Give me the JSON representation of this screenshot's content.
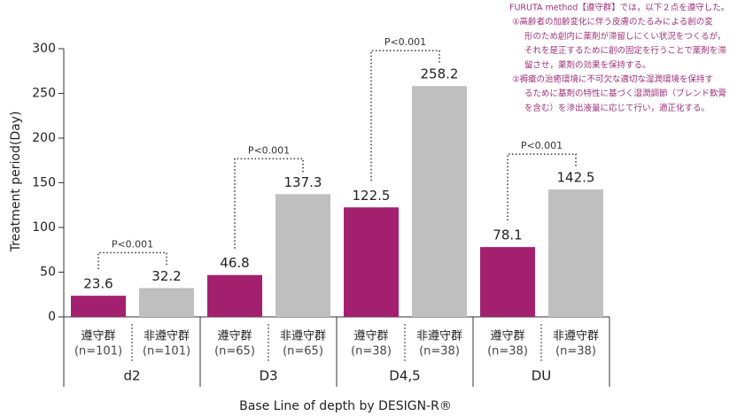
{
  "chart_data": {
    "type": "bar",
    "y_label": "Treatment period(Day)",
    "x_label": "Base Line of depth by DESIGN-R®",
    "categories": [
      "d2",
      "D3",
      "D4,5",
      "DU"
    ],
    "series": [
      {
        "name": "遵守群",
        "color": "#a3206f",
        "values": [
          23.6,
          46.8,
          122.5,
          78.1
        ],
        "sample_labels": [
          "(n=101)",
          "(n=65)",
          "(n=38)",
          "(n=38)"
        ]
      },
      {
        "name": "非遵守群",
        "color": "#bfbfbf",
        "values": [
          32.2,
          137.3,
          258.2,
          142.5
        ],
        "sample_labels": [
          "(n=101)",
          "(n=65)",
          "(n=38)",
          "(n=38)"
        ]
      }
    ],
    "significance": [
      "P<0.001",
      "P<0.001",
      "P<0.001",
      "P<0.001"
    ],
    "ylim": [
      0,
      300
    ],
    "yticks": [
      0,
      50,
      100,
      150,
      200,
      250,
      300
    ],
    "note_lines": [
      "FURUTA method【遵守群】では，以下２点を遵守した。",
      "①高齢者の加齢変化に伴う皮膚のたるみによる創の変",
      "形のため創内に薬剤が滞留しにくい状況をつくるが，",
      "それを是正するために創の固定を行うことで薬剤を滞",
      "留させ，薬剤の効果を保持する。",
      "②褥瘡の治癒環境に不可欠な適切な湿潤環境を保持す",
      "るために基剤の特性に基づく湿潤調節（ブレンド軟膏",
      "を含む）を滲出液量に応じて行い，適正化する。"
    ]
  }
}
